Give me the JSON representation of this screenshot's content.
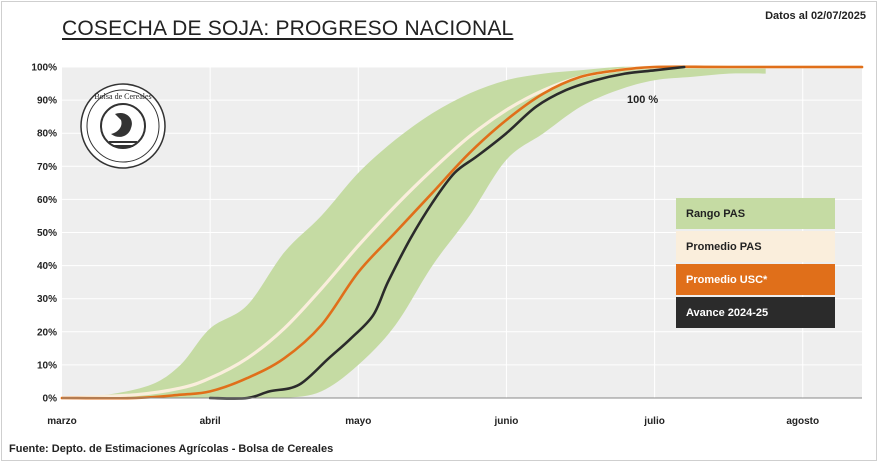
{
  "header": {
    "title": "COSECHA DE SOJA: PROGRESO NACIONAL",
    "date": "Datos al 02/07/2025"
  },
  "footer": {
    "source": "Fuente: Depto. de Estimaciones Agrícolas - Bolsa de Cereales"
  },
  "logo": {
    "text": "Bolsa de Cereales"
  },
  "annotation": "100 %",
  "colors": {
    "range": "#c5dba3",
    "promedio_pas": "#faeedc",
    "promedio_usc": "#e06f1a",
    "avance": "#2b2b2b",
    "plot_bg": "#eeeeee",
    "grid": "#ffffff"
  },
  "chart_data": {
    "type": "area",
    "title": "COSECHA DE SOJA: PROGRESO NACIONAL",
    "xlabel": "",
    "ylabel": "",
    "x_ticks": [
      "marzo",
      "abril",
      "mayo",
      "junio",
      "julio",
      "agosto"
    ],
    "y_ticks": [
      "0%",
      "10%",
      "20%",
      "30%",
      "40%",
      "50%",
      "60%",
      "70%",
      "80%",
      "90%",
      "100%"
    ],
    "ylim": [
      0,
      100
    ],
    "xlim_month_index": [
      0,
      5.4
    ],
    "grid": true,
    "legend_position": "right",
    "legend": [
      "Rango PAS",
      "Promedio PAS",
      "Promedio  USC*",
      "Avance 2024-25"
    ],
    "series": [
      {
        "name": "Rango PAS",
        "kind": "band",
        "x": [
          0,
          0.3,
          0.6,
          0.8,
          1.0,
          1.25,
          1.5,
          1.75,
          2.0,
          2.25,
          2.5,
          2.75,
          3.0,
          3.25,
          3.5,
          3.75,
          4.0,
          4.25,
          4.5,
          4.75
        ],
        "upper": [
          0,
          1,
          4,
          10,
          21,
          28,
          44,
          55,
          68,
          78,
          86,
          92,
          96,
          98,
          99,
          100,
          100,
          100,
          100,
          100
        ],
        "lower": [
          0,
          0,
          0,
          0,
          0,
          0,
          0,
          2,
          10,
          22,
          40,
          55,
          72,
          80,
          88,
          93,
          96,
          97,
          98,
          98
        ]
      },
      {
        "name": "Promedio PAS",
        "kind": "line",
        "x": [
          0,
          0.5,
          0.8,
          1.0,
          1.25,
          1.5,
          1.75,
          2.0,
          2.25,
          2.5,
          2.75,
          3.0,
          3.25,
          3.5,
          3.75,
          4.0,
          4.5,
          5.4
        ],
        "values": [
          0,
          1,
          3,
          6,
          12,
          21,
          33,
          46,
          58,
          69,
          79,
          87,
          93,
          97,
          99,
          100,
          100,
          100
        ]
      },
      {
        "name": "Promedio  USC*",
        "kind": "line",
        "x": [
          0,
          0.5,
          0.8,
          1.0,
          1.25,
          1.5,
          1.75,
          2.0,
          2.25,
          2.5,
          2.75,
          3.0,
          3.25,
          3.5,
          3.75,
          4.0,
          4.5,
          5.4
        ],
        "values": [
          0,
          0,
          1,
          2,
          6,
          12,
          22,
          38,
          50,
          62,
          74,
          84,
          92,
          97,
          99,
          100,
          100,
          100
        ]
      },
      {
        "name": "Avance 2024-25",
        "kind": "line",
        "x": [
          1.0,
          1.25,
          1.4,
          1.6,
          1.8,
          1.95,
          2.1,
          2.2,
          2.35,
          2.5,
          2.65,
          2.8,
          3.0,
          3.2,
          3.4,
          3.6,
          3.8,
          4.0,
          4.2
        ],
        "values": [
          0,
          0,
          2,
          4,
          12,
          18,
          25,
          35,
          48,
          59,
          68,
          73,
          80,
          88,
          93,
          96,
          98,
          99,
          100
        ]
      }
    ],
    "annotations": [
      "100 %"
    ]
  }
}
